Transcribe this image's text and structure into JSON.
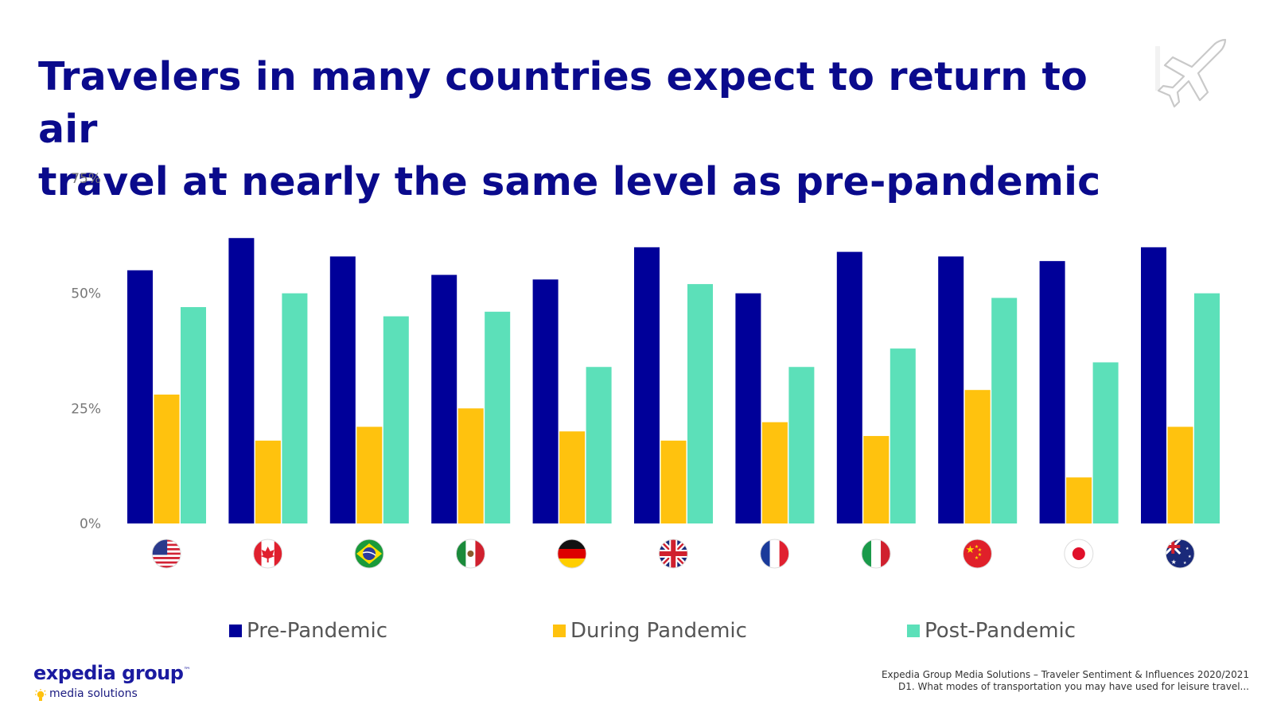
{
  "title": {
    "line1": "Travelers in many countries expect to return to air",
    "line2": "travel at nearly the same level as pre-pandemic"
  },
  "icons": {
    "top_right": "airplane-icon",
    "logo_mark": "lightbulb-icon"
  },
  "logo": {
    "main": "expedia group",
    "sup": "™",
    "sub": "media solutions"
  },
  "source": {
    "line1": "Expedia Group Media Solutions – Traveler Sentiment & Influences 2020/2021",
    "line2": "D1. What modes of transportation you may have used for leisure travel..."
  },
  "chart_data": {
    "type": "bar",
    "categories": [
      "United States",
      "Canada",
      "Brazil",
      "Mexico",
      "Germany",
      "United Kingdom",
      "France",
      "Italy",
      "China",
      "Japan",
      "Australia"
    ],
    "category_display": "flags",
    "series": [
      {
        "name": "Pre-Pandemic",
        "color": "#000099",
        "values": [
          55,
          62,
          58,
          54,
          53,
          60,
          50,
          59,
          58,
          57,
          60
        ]
      },
      {
        "name": "During Pandemic",
        "color": "#ffc20e",
        "values": [
          28,
          18,
          21,
          25,
          20,
          18,
          22,
          19,
          29,
          10,
          21
        ]
      },
      {
        "name": "Post-Pandemic",
        "color": "#5ce0b9",
        "values": [
          47,
          50,
          45,
          46,
          34,
          52,
          34,
          38,
          49,
          35,
          50
        ]
      }
    ],
    "y_ticks": [
      "0%",
      "25%",
      "50%",
      "75%"
    ],
    "ylim": [
      0,
      75
    ],
    "grid": false,
    "legend_position": "bottom"
  }
}
